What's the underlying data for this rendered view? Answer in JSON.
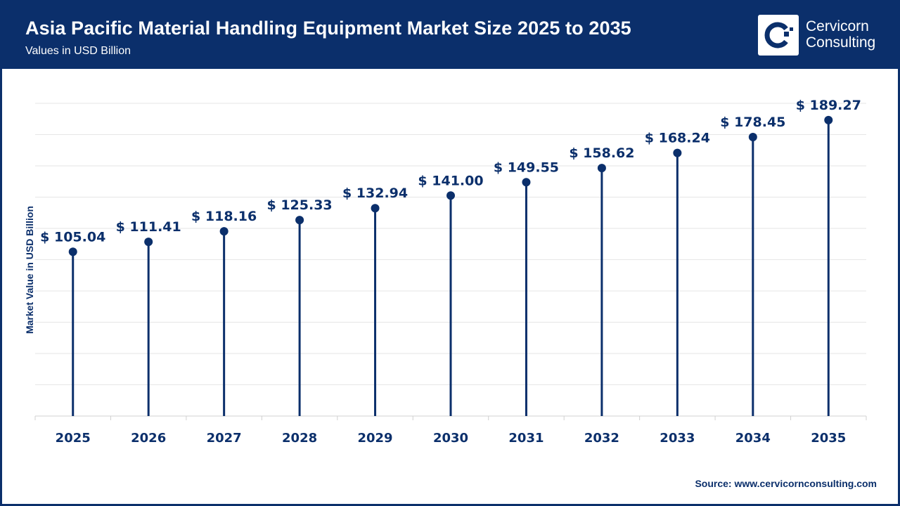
{
  "header": {
    "title": "Asia Pacific Material Handling Equipment Market Size 2025 to 2035",
    "subtitle": "Values in USD Billion"
  },
  "logo": {
    "line1": "Cervicorn",
    "line2": "Consulting"
  },
  "source": "Source: www.cervicornconsulting.com",
  "colors": {
    "primary": "#0b2f6b",
    "grid": "#e6e6e6"
  },
  "chart_data": {
    "type": "lollipop",
    "categories": [
      "2025",
      "2026",
      "2027",
      "2028",
      "2029",
      "2030",
      "2031",
      "2032",
      "2033",
      "2034",
      "2035"
    ],
    "values": [
      105.04,
      111.41,
      118.16,
      125.33,
      132.94,
      141.0,
      149.55,
      158.62,
      168.24,
      178.45,
      189.27
    ],
    "data_labels": [
      "$ 105.04",
      "$ 111.41",
      "$ 118.16",
      "$ 125.33",
      "$ 132.94",
      "$ 141.00",
      "$ 149.55",
      "$ 158.62",
      "$ 168.24",
      "$ 178.45",
      "$ 189.27"
    ],
    "ylabel": "Market Value in USD Billion",
    "ylim": [
      0,
      200
    ],
    "grid": true
  }
}
